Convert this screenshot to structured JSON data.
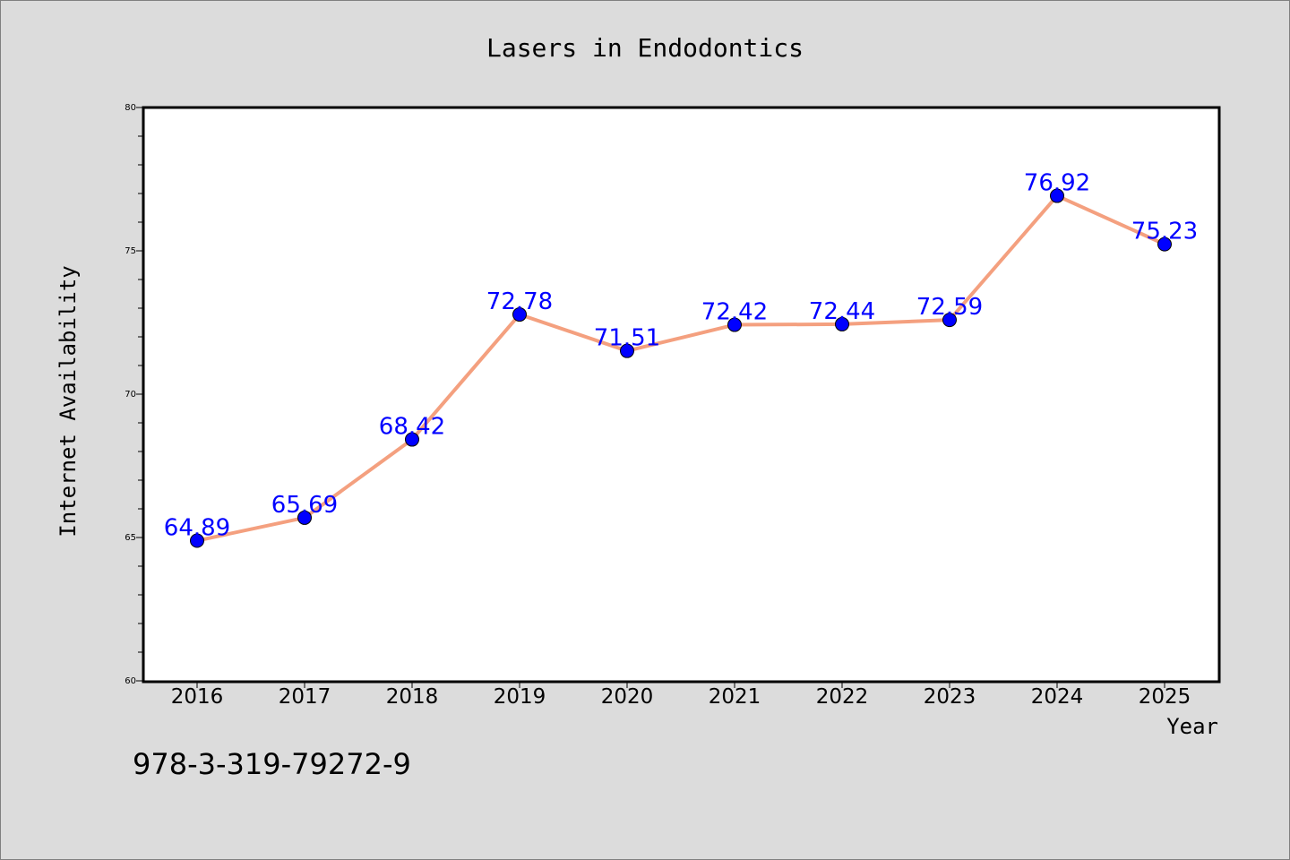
{
  "chart_data": {
    "type": "line",
    "title": "Lasers in Endodontics",
    "xlabel": "Year",
    "ylabel": "Internet Availability",
    "categories": [
      "2016",
      "2017",
      "2018",
      "2019",
      "2020",
      "2021",
      "2022",
      "2023",
      "2024",
      "2025"
    ],
    "series": [
      {
        "values": [
          64.89,
          65.69,
          68.42,
          72.78,
          71.51,
          72.42,
          72.44,
          72.59,
          76.92,
          75.23
        ],
        "data_labels": [
          "64.89",
          "65.69",
          "68.42",
          "72.78",
          "71.51",
          "72.42",
          "72.44",
          "72.59",
          "76.92",
          "75.23"
        ]
      }
    ],
    "ylim": [
      60,
      80
    ],
    "yticks": [
      "60",
      "65",
      "70",
      "75",
      "80"
    ],
    "grid": false,
    "colors": {
      "line": "#f4a07f",
      "marker": "#0000ff",
      "data_label": "#0000ff",
      "background": "#dcdcdc",
      "plot_background": "#ffffff"
    }
  },
  "footer_text": "978-3-319-79272-9"
}
